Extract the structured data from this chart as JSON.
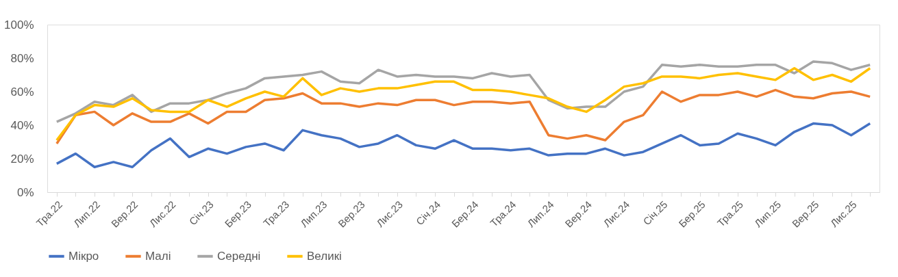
{
  "chart_data": {
    "type": "line",
    "categories": [
      "Тра.22",
      null,
      "Лип.22",
      null,
      "Вер.22",
      null,
      "Лис.22",
      null,
      "Січ.23",
      null,
      "Бер.23",
      null,
      "Тра.23",
      null,
      "Лип.23",
      null,
      "Вер.23",
      null,
      "Лис.23",
      null,
      "Січ.24",
      null,
      "Бер.24",
      null,
      "Тра.24",
      null,
      "Лип.24",
      null,
      "Вер.24",
      null,
      "Лис.24",
      null,
      "Січ.25",
      null,
      "Бер.25",
      null,
      "Тра.25",
      null,
      "Лип.25",
      null,
      "Вер.25",
      null,
      "Лис.25",
      null
    ],
    "series": [
      {
        "name": "Мікро",
        "color": "#4472c4",
        "values": [
          17,
          23,
          15,
          18,
          15,
          25,
          32,
          21,
          26,
          23,
          27,
          29,
          25,
          37,
          34,
          32,
          27,
          29,
          34,
          28,
          26,
          31,
          26,
          26,
          25,
          26,
          22,
          23,
          23,
          26,
          22,
          24,
          29,
          34,
          28,
          29,
          35,
          32,
          28,
          36,
          41,
          40,
          34,
          41
        ]
      },
      {
        "name": "Малі",
        "color": "#ed7d31",
        "values": [
          29,
          46,
          48,
          40,
          47,
          42,
          42,
          47,
          41,
          48,
          48,
          55,
          56,
          59,
          53,
          53,
          51,
          53,
          52,
          55,
          55,
          52,
          54,
          54,
          53,
          54,
          34,
          32,
          34,
          31,
          42,
          46,
          60,
          54,
          58,
          58,
          60,
          57,
          61,
          57,
          56,
          59,
          60,
          57
        ]
      },
      {
        "name": "Середні",
        "color": "#a5a5a5",
        "values": [
          42,
          47,
          54,
          52,
          58,
          48,
          53,
          53,
          55,
          59,
          62,
          68,
          69,
          70,
          72,
          66,
          65,
          73,
          69,
          70,
          69,
          69,
          68,
          71,
          69,
          70,
          55,
          50,
          51,
          51,
          60,
          63,
          76,
          75,
          76,
          75,
          75,
          76,
          76,
          71,
          78,
          77,
          73,
          76
        ]
      },
      {
        "name": "Великі",
        "color": "#ffc000",
        "values": [
          31,
          46,
          52,
          51,
          56,
          49,
          48,
          48,
          55,
          51,
          56,
          60,
          57,
          68,
          58,
          62,
          60,
          62,
          62,
          64,
          66,
          66,
          61,
          61,
          60,
          58,
          56,
          51,
          48,
          55,
          63,
          65,
          69,
          69,
          68,
          70,
          71,
          69,
          67,
          74,
          67,
          70,
          66,
          74
        ]
      }
    ],
    "ylim": [
      0,
      100
    ],
    "yticks": [
      {
        "value": 0,
        "label": "0%"
      },
      {
        "value": 20,
        "label": "20%"
      },
      {
        "value": 40,
        "label": "40%"
      },
      {
        "value": 60,
        "label": "60%"
      },
      {
        "value": 80,
        "label": "80%"
      },
      {
        "value": 100,
        "label": "100%"
      }
    ],
    "legend": "bottom"
  }
}
